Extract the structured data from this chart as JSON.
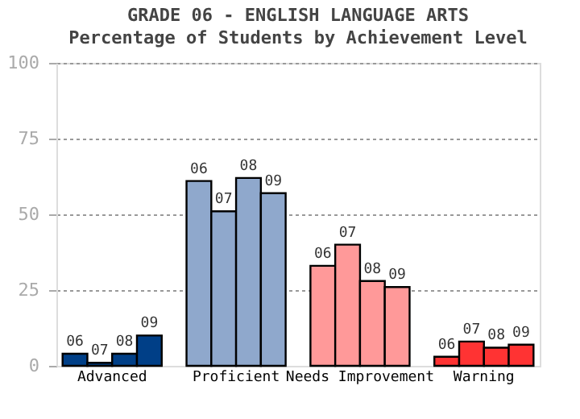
{
  "chart_data": {
    "type": "bar",
    "title": "GRADE 06 - ENGLISH LANGUAGE ARTS",
    "subtitle": "Percentage of Students by Achievement Level",
    "categories": [
      "Advanced",
      "Proficient",
      "Needs Improvement",
      "Warning"
    ],
    "series": [
      {
        "name": "06",
        "colors": [
          "#003f87",
          "#8fa8cc",
          "#ff9999",
          "#ff3333"
        ],
        "values": [
          4,
          61,
          33,
          3
        ]
      },
      {
        "name": "07",
        "colors": [
          "#003f87",
          "#8fa8cc",
          "#ff9999",
          "#ff3333"
        ],
        "values": [
          1,
          51,
          40,
          8
        ]
      },
      {
        "name": "08",
        "colors": [
          "#003f87",
          "#8fa8cc",
          "#ff9999",
          "#ff3333"
        ],
        "values": [
          4,
          62,
          28,
          6
        ]
      },
      {
        "name": "09",
        "colors": [
          "#003f87",
          "#8fa8cc",
          "#ff9999",
          "#ff3333"
        ],
        "values": [
          10,
          57,
          26,
          7
        ]
      }
    ],
    "ylim": [
      0,
      100
    ],
    "yticks": [
      0,
      25,
      50,
      75,
      100
    ],
    "grid": "y"
  }
}
